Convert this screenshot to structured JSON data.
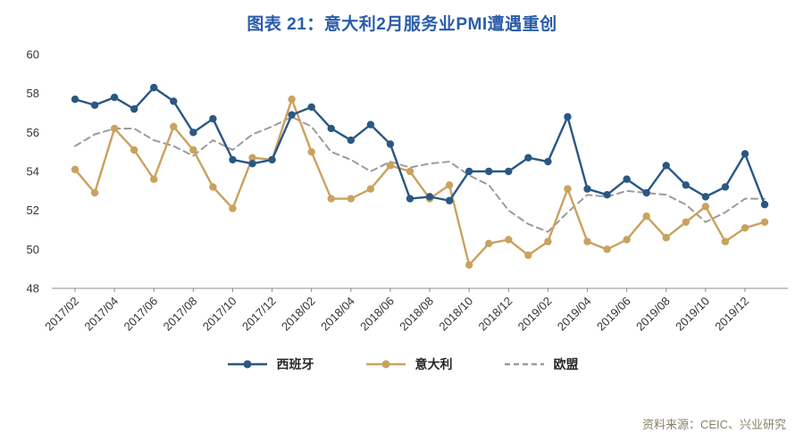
{
  "page": {
    "title": "图表 21：意大利2月服务业PMI遭遇重创",
    "source": "资料来源：CEIC、兴业研究"
  },
  "colors": {
    "title": "#2A5CAA",
    "spain": "#2A5783",
    "italy": "#C9A25E",
    "eu": "#9B9B9B",
    "axis": "#8C8C8C",
    "tick_text": "#333333",
    "source_text": "#8A8068"
  },
  "legend": {
    "items": [
      {
        "label": "西班牙"
      },
      {
        "label": "意大利"
      },
      {
        "label": "欧盟"
      }
    ]
  },
  "chart_data": {
    "type": "line",
    "title": "图表 21：意大利2月服务业PMI遭遇重创",
    "xlabel": "",
    "ylabel": "",
    "ylim": [
      48,
      60
    ],
    "ytick_step": 2,
    "grid": false,
    "legend_position": "bottom",
    "x": [
      "2017/02",
      "2017/03",
      "2017/04",
      "2017/05",
      "2017/06",
      "2017/07",
      "2017/08",
      "2017/09",
      "2017/10",
      "2017/11",
      "2017/12",
      "2018/01",
      "2018/02",
      "2018/03",
      "2018/04",
      "2018/05",
      "2018/06",
      "2018/07",
      "2018/08",
      "2018/09",
      "2018/10",
      "2018/11",
      "2018/12",
      "2019/01",
      "2019/02",
      "2019/03",
      "2019/04",
      "2019/05",
      "2019/06",
      "2019/07",
      "2019/08",
      "2019/09",
      "2019/10",
      "2019/11",
      "2019/12",
      "2020/01"
    ],
    "x_tick_labels": [
      "2017/02",
      "2017/04",
      "2017/06",
      "2017/08",
      "2017/10",
      "2017/12",
      "2018/02",
      "2018/04",
      "2018/06",
      "2018/08",
      "2018/10",
      "2018/12",
      "2019/02",
      "2019/04",
      "2019/06",
      "2019/08",
      "2019/10",
      "2019/12"
    ],
    "series": [
      {
        "name": "西班牙",
        "color": "#2A5783",
        "marker": true,
        "dashed": false,
        "values": [
          57.7,
          57.4,
          57.8,
          57.2,
          58.3,
          57.6,
          56.0,
          56.7,
          54.6,
          54.4,
          54.6,
          56.9,
          57.3,
          56.2,
          55.6,
          56.4,
          55.4,
          52.6,
          52.7,
          52.5,
          54.0,
          54.0,
          54.0,
          54.7,
          54.5,
          56.8,
          53.1,
          52.8,
          53.6,
          52.9,
          54.3,
          53.3,
          52.7,
          53.2,
          54.9,
          52.3
        ]
      },
      {
        "name": "意大利",
        "color": "#C9A25E",
        "marker": true,
        "dashed": false,
        "values": [
          54.1,
          52.9,
          56.2,
          55.1,
          53.6,
          56.3,
          55.1,
          53.2,
          52.1,
          54.7,
          54.6,
          57.7,
          55.0,
          52.6,
          52.6,
          53.1,
          54.3,
          54.0,
          52.6,
          53.3,
          49.2,
          50.3,
          50.5,
          49.7,
          50.4,
          53.1,
          50.4,
          50.0,
          50.5,
          51.7,
          50.6,
          51.4,
          52.2,
          50.4,
          51.1,
          51.4
        ]
      },
      {
        "name": "欧盟",
        "color": "#9B9B9B",
        "marker": false,
        "dashed": true,
        "values": [
          55.3,
          55.9,
          56.2,
          56.2,
          55.6,
          55.3,
          54.8,
          55.6,
          55.1,
          55.9,
          56.3,
          56.8,
          56.3,
          55.0,
          54.6,
          54.0,
          54.5,
          54.2,
          54.4,
          54.5,
          53.8,
          53.3,
          52.0,
          51.3,
          50.9,
          51.9,
          52.8,
          52.7,
          53.0,
          52.9,
          52.8,
          52.3,
          51.4,
          51.9,
          52.6,
          52.6
        ]
      }
    ]
  }
}
